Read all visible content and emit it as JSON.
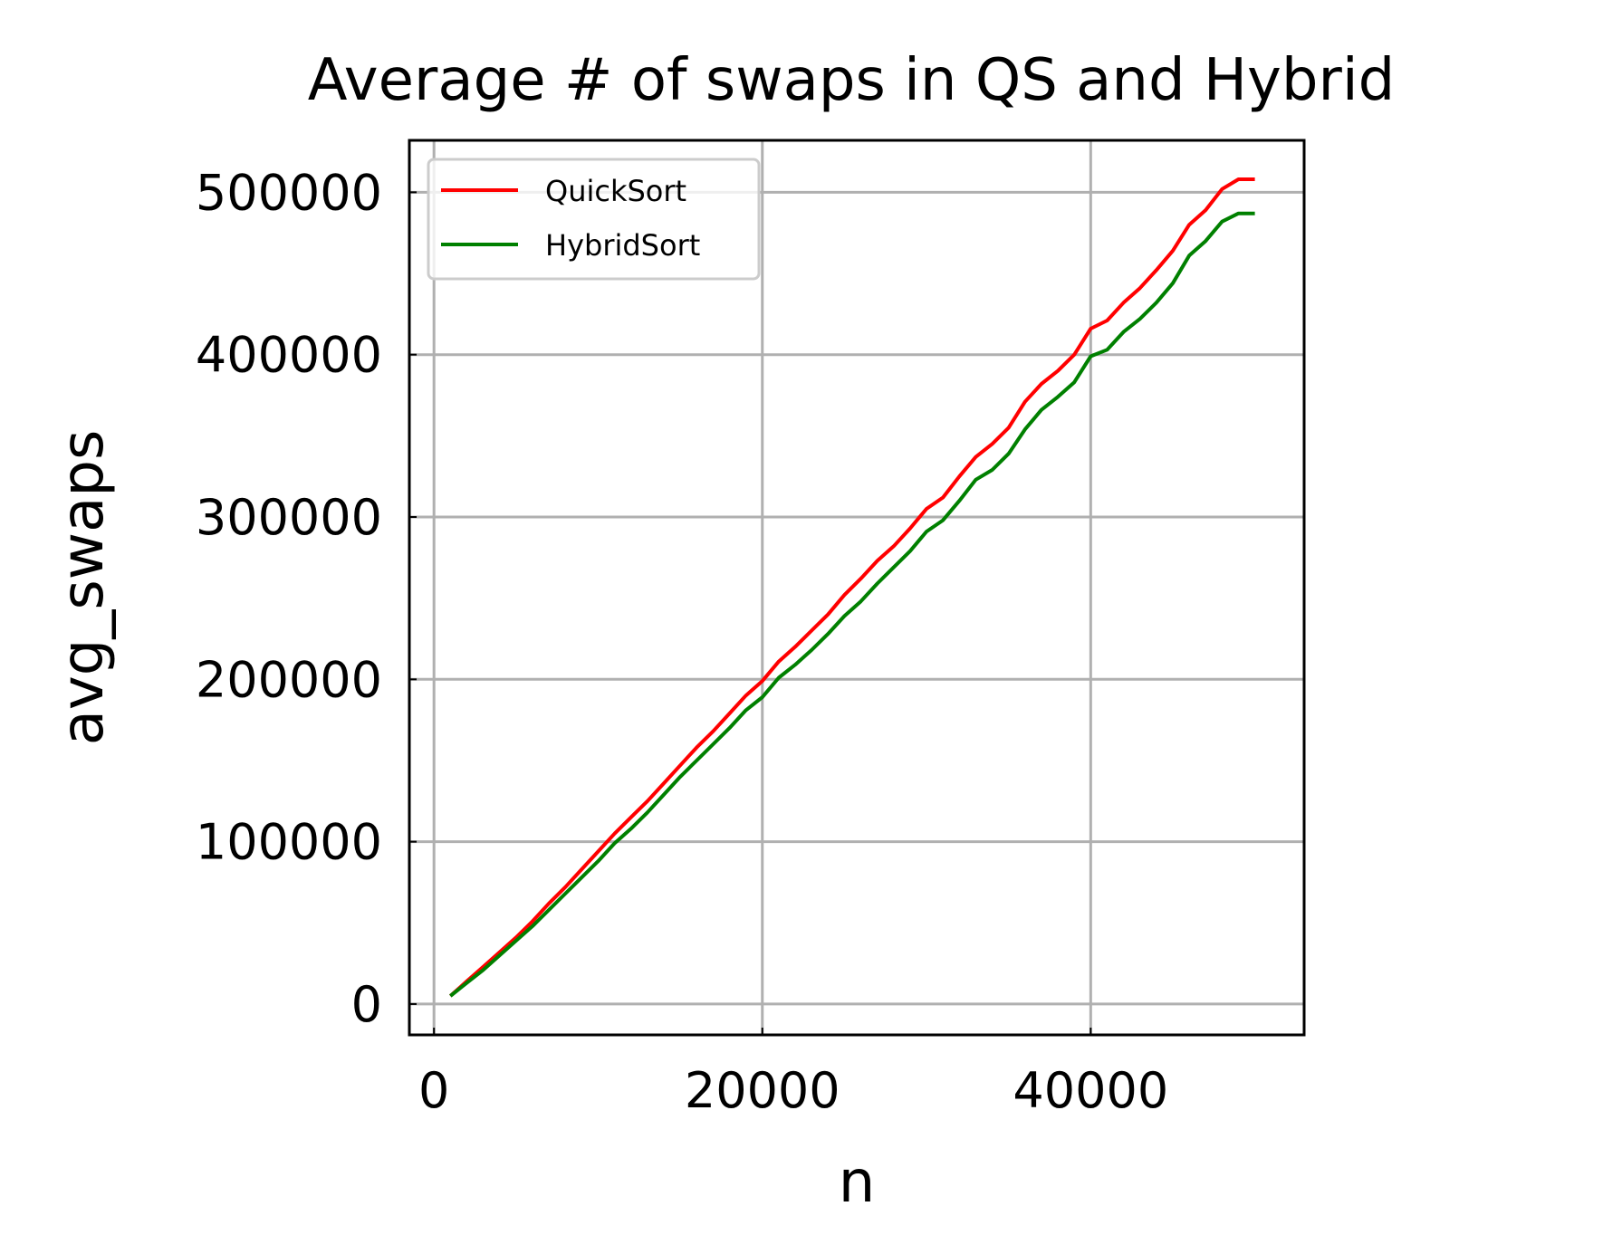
{
  "chart_data": {
    "type": "line",
    "title": "Average # of swaps in QS and Hybrid",
    "xlabel": "n",
    "ylabel": "avg_swaps",
    "xlim": [
      -1500,
      53000
    ],
    "ylim": [
      -19000,
      532000
    ],
    "xticks": [
      0,
      20000,
      40000
    ],
    "xtick_labels": [
      "0",
      "20000",
      "40000"
    ],
    "yticks": [
      0,
      100000,
      200000,
      300000,
      400000,
      500000
    ],
    "ytick_labels": [
      "0",
      "100000",
      "200000",
      "300000",
      "400000",
      "500000"
    ],
    "grid": true,
    "legend_position": "upper-left",
    "x": [
      1000,
      2000,
      3000,
      4000,
      5000,
      6000,
      7000,
      8000,
      9000,
      10000,
      11000,
      12000,
      13000,
      14000,
      15000,
      16000,
      17000,
      18000,
      19000,
      20000,
      21000,
      22000,
      23000,
      24000,
      25000,
      26000,
      27000,
      28000,
      29000,
      30000,
      31000,
      32000,
      33000,
      34000,
      35000,
      36000,
      37000,
      38000,
      39000,
      40000,
      41000,
      42000,
      43000,
      44000,
      45000,
      46000,
      47000,
      48000,
      49000,
      50000
    ],
    "series": [
      {
        "name": "QuickSort",
        "color": "#ff0000",
        "values": [
          5000,
          14000,
          23000,
          32000,
          41000,
          51000,
          62000,
          72000,
          83000,
          94000,
          105000,
          115000,
          125000,
          136000,
          147000,
          158000,
          168000,
          179000,
          190000,
          199000,
          211000,
          220000,
          230000,
          240000,
          252000,
          262000,
          273000,
          282000,
          293000,
          305000,
          312000,
          325000,
          337000,
          345000,
          355000,
          371000,
          382000,
          390000,
          400000,
          416000,
          421000,
          432000,
          441000,
          452000,
          464000,
          480000,
          489000,
          502000,
          508000,
          508000
        ]
      },
      {
        "name": "HybridSort",
        "color": "#008000",
        "values": [
          5000,
          13000,
          21000,
          30000,
          39000,
          48000,
          58000,
          68000,
          78000,
          88000,
          99000,
          108000,
          118000,
          129000,
          140000,
          150000,
          160000,
          170000,
          181000,
          189000,
          201000,
          209000,
          218000,
          228000,
          239000,
          248000,
          259000,
          269000,
          279000,
          291000,
          298000,
          310000,
          323000,
          329000,
          339000,
          354000,
          366000,
          374000,
          383000,
          399000,
          403000,
          414000,
          422000,
          432000,
          444000,
          461000,
          470000,
          482000,
          487000,
          487000
        ]
      }
    ]
  }
}
